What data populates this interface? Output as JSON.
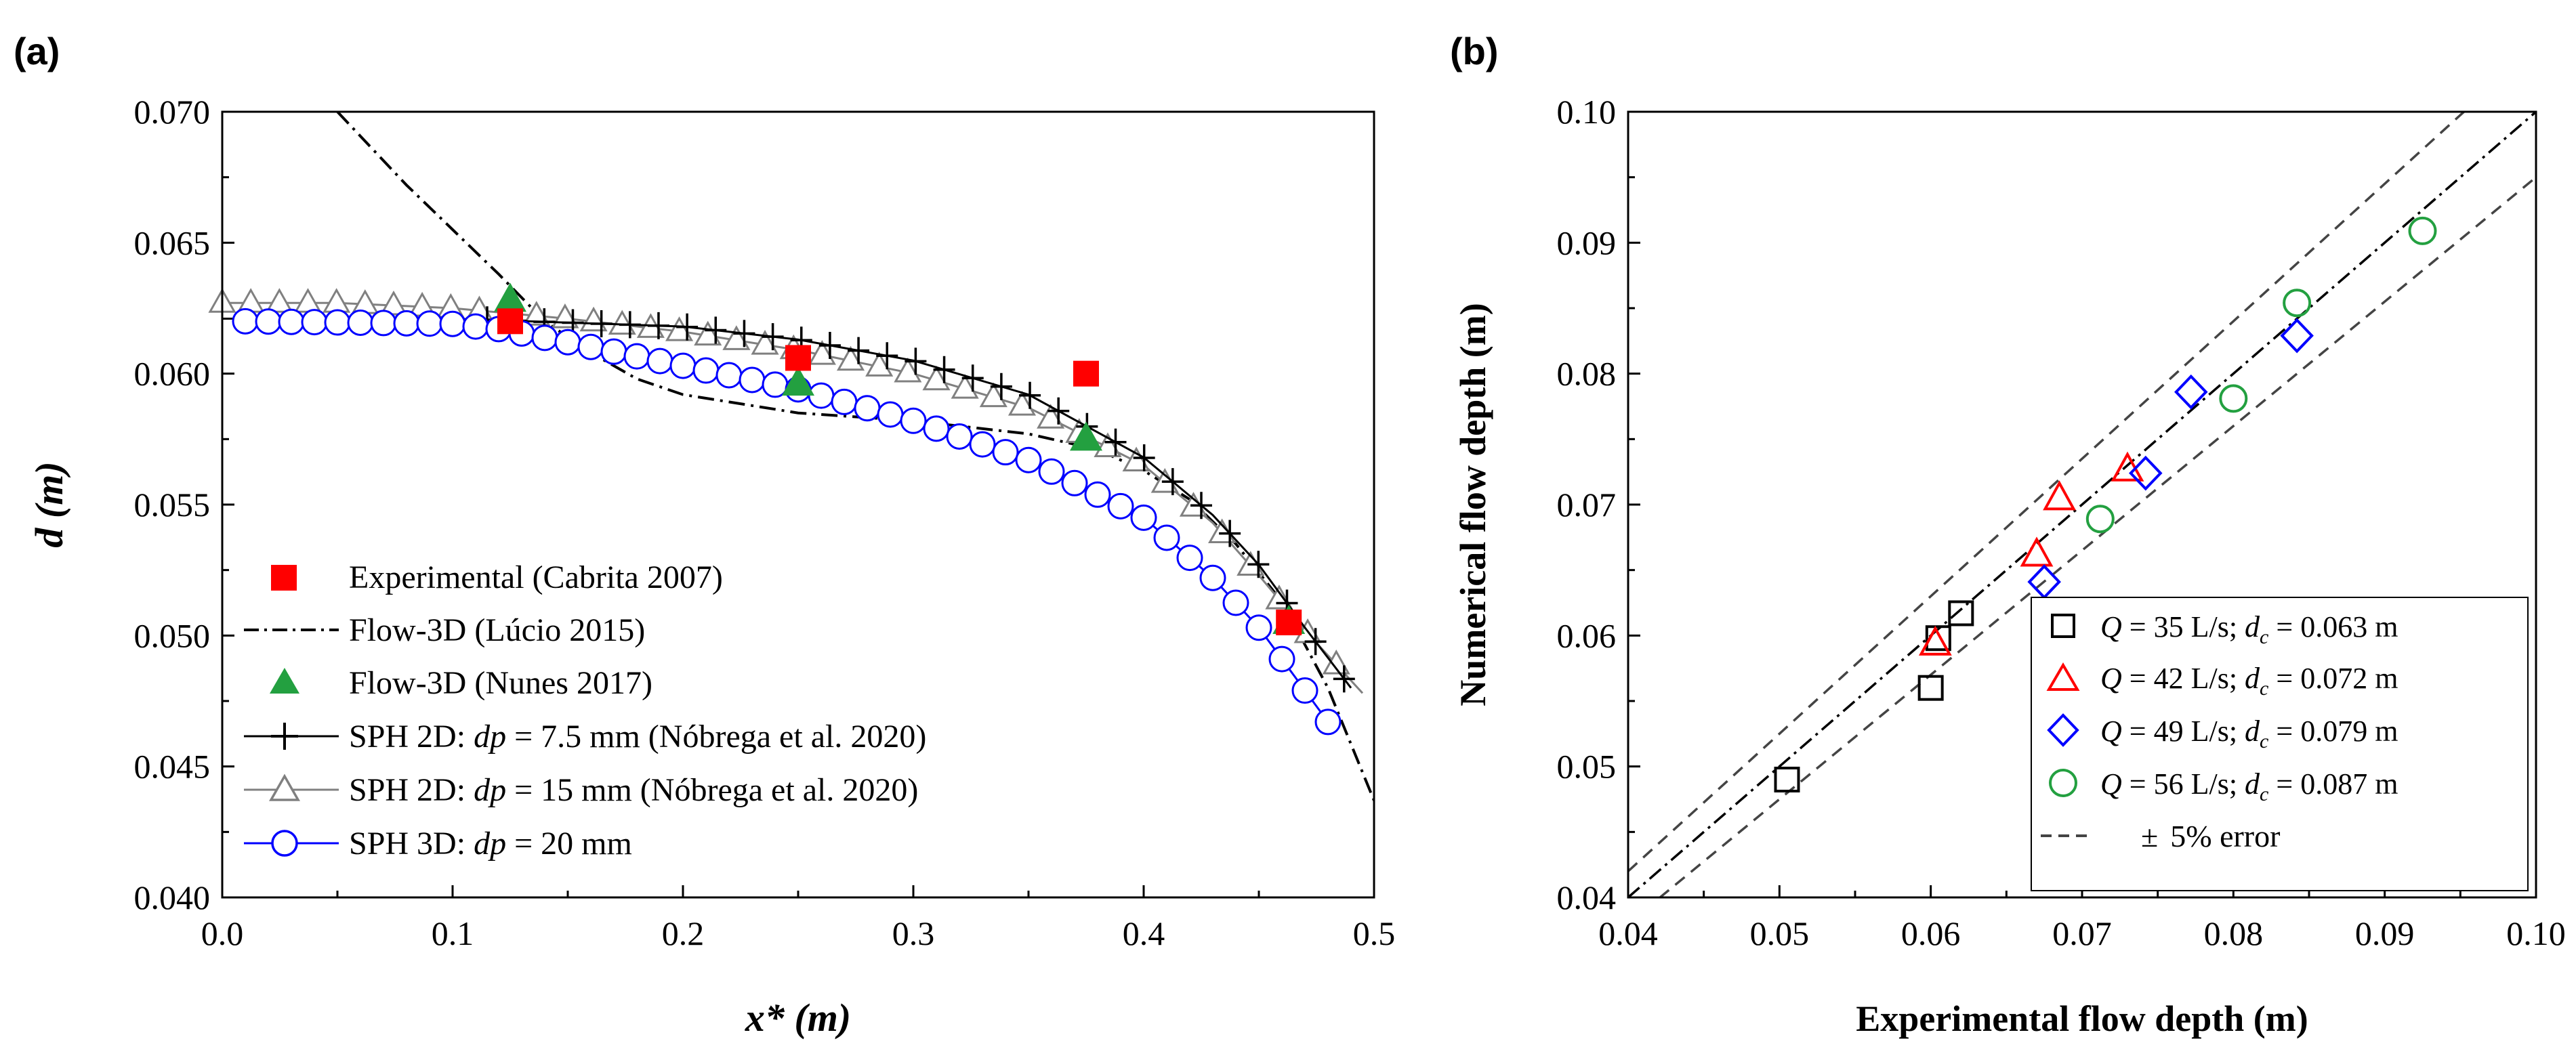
{
  "chart_data": [
    {
      "panel_label": "(a)",
      "type": "line",
      "xlabel": "x* (m)",
      "ylabel": "d (m)",
      "xlim": [
        0.0,
        0.5
      ],
      "ylim": [
        0.04,
        0.07
      ],
      "xticks": [
        "0.0",
        "0.1",
        "0.2",
        "0.3",
        "0.4",
        "0.5"
      ],
      "yticks": [
        "0.040",
        "0.045",
        "0.050",
        "0.055",
        "0.060",
        "0.065",
        "0.070"
      ],
      "legend_position": "bottom-left",
      "series": [
        {
          "name": "Experimental (Cabrita 2007)",
          "marker": "filled-square",
          "color": "#ff0000",
          "x": [
            0.125,
            0.25,
            0.375,
            0.463
          ],
          "y": [
            0.062,
            0.0606,
            0.06,
            0.0505
          ]
        },
        {
          "name": "Flow-3D (Lúcio 2015)",
          "marker": "dash-dot-line",
          "color": "#000000",
          "x": [
            0.05,
            0.08,
            0.1,
            0.12,
            0.14,
            0.16,
            0.18,
            0.2,
            0.25,
            0.3,
            0.35,
            0.38,
            0.4,
            0.42,
            0.44,
            0.46,
            0.48,
            0.5
          ],
          "y": [
            0.07,
            0.0672,
            0.0655,
            0.0638,
            0.062,
            0.0608,
            0.0598,
            0.0592,
            0.0585,
            0.0582,
            0.0577,
            0.0571,
            0.0563,
            0.0552,
            0.0535,
            0.0513,
            0.048,
            0.0437
          ]
        },
        {
          "name": "Flow-3D (Nunes 2017)",
          "marker": "filled-triangle",
          "color": "#23a040",
          "x": [
            0.125,
            0.25,
            0.375,
            0.463
          ],
          "y": [
            0.0628,
            0.0596,
            0.0575,
            0.0505
          ]
        },
        {
          "name_prefix": "SPH 2D: ",
          "name_var": "dp",
          "name_suffix": " = 7.5 mm (Nóbrega et al. 2020)",
          "marker": "plus-line",
          "color": "#000000",
          "x": [
            0.0,
            0.1,
            0.2,
            0.25,
            0.3,
            0.35,
            0.4,
            0.43,
            0.45,
            0.47,
            0.49
          ],
          "y": [
            0.0621,
            0.0621,
            0.0618,
            0.0613,
            0.0605,
            0.0592,
            0.0568,
            0.0546,
            0.0527,
            0.0503,
            0.048
          ]
        },
        {
          "name_prefix": "SPH 2D: ",
          "name_var": "dp",
          "name_suffix": " = 15 mm (Nóbrega et al. 2020)",
          "marker": "open-triangle-line",
          "color": "#808080",
          "x": [
            0.0,
            0.05,
            0.1,
            0.15,
            0.2,
            0.25,
            0.3,
            0.35,
            0.4,
            0.43,
            0.45,
            0.47,
            0.495
          ],
          "y": [
            0.0627,
            0.0627,
            0.0625,
            0.0621,
            0.0616,
            0.0609,
            0.06,
            0.0587,
            0.0565,
            0.0543,
            0.0523,
            0.0502,
            0.0478
          ]
        },
        {
          "name_prefix": "SPH 3D: ",
          "name_var": "dp",
          "name_suffix": " = 20 mm",
          "marker": "open-circle-line",
          "color": "#0000ff",
          "x": [
            0.01,
            0.1,
            0.12,
            0.15,
            0.2,
            0.25,
            0.3,
            0.35,
            0.4,
            0.43,
            0.45,
            0.465,
            0.48
          ],
          "y": [
            0.062,
            0.0619,
            0.0617,
            0.0612,
            0.0603,
            0.0594,
            0.0582,
            0.0567,
            0.0545,
            0.0522,
            0.0503,
            0.0485,
            0.0467
          ]
        }
      ]
    },
    {
      "panel_label": "(b)",
      "type": "scatter",
      "xlabel": "Experimental flow depth (m)",
      "ylabel": "Numerical flow depth (m)",
      "xlim": [
        0.04,
        0.1
      ],
      "ylim": [
        0.04,
        0.1
      ],
      "xticks": [
        "0.04",
        "0.05",
        "0.06",
        "0.07",
        "0.08",
        "0.09",
        "0.10"
      ],
      "yticks": [
        "0.04",
        "0.05",
        "0.06",
        "0.07",
        "0.08",
        "0.09",
        "0.10"
      ],
      "legend_position": "bottom-right",
      "series": [
        {
          "q_label": "Q",
          "q_text": " = 35 L/s; ",
          "dc_var": "d",
          "dc_sub": "c",
          "dc_text": " = 0.063 m",
          "marker": "open-square",
          "color": "#000000",
          "x": [
            0.0505,
            0.06,
            0.0605,
            0.062
          ],
          "y": [
            0.049,
            0.056,
            0.0598,
            0.0617
          ]
        },
        {
          "q_label": "Q",
          "q_text": " = 42 L/s; ",
          "dc_var": "d",
          "dc_sub": "c",
          "dc_text": " = 0.072 m",
          "marker": "open-triangle",
          "color": "#ff0000",
          "x": [
            0.0603,
            0.067,
            0.0685,
            0.073
          ],
          "y": [
            0.0594,
            0.0662,
            0.0705,
            0.0727
          ]
        },
        {
          "q_label": "Q",
          "q_text": " = 49 L/s; ",
          "dc_var": "d",
          "dc_sub": "c",
          "dc_text": " = 0.079 m",
          "marker": "open-diamond",
          "color": "#0000ff",
          "x": [
            0.0675,
            0.0742,
            0.0772,
            0.0842
          ],
          "y": [
            0.0641,
            0.0724,
            0.0786,
            0.0829
          ]
        },
        {
          "q_label": "Q",
          "q_text": " = 56 L/s; ",
          "dc_var": "d",
          "dc_sub": "c",
          "dc_text": " = 0.087 m",
          "marker": "open-circle",
          "color": "#23a040",
          "x": [
            0.0712,
            0.08,
            0.0842,
            0.0925
          ],
          "y": [
            0.0689,
            0.0781,
            0.0854,
            0.0909
          ]
        }
      ],
      "reference_lines": {
        "identity": {
          "slope": 1.0,
          "style": "dash-dot"
        },
        "bounds": {
          "slopes": [
            1.05,
            0.95
          ],
          "style": "dashed",
          "label_symbol": "±",
          "label_text": "5% error"
        }
      }
    }
  ]
}
